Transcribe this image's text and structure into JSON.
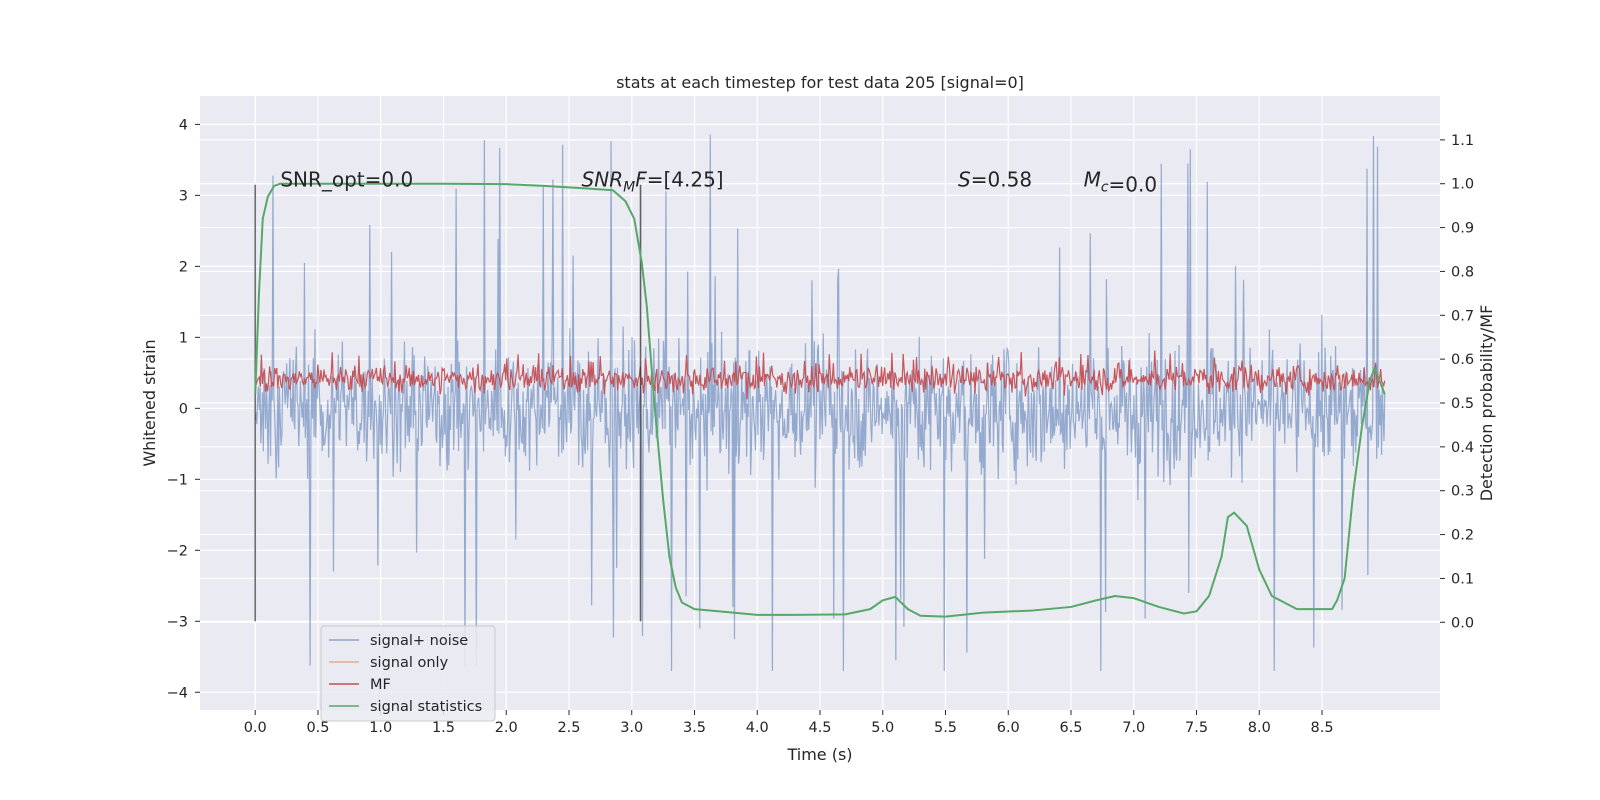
{
  "chart_data": {
    "type": "line",
    "title": "stats at each timestep for test data 205 [signal=0]",
    "xlabel": "Time (s)",
    "ylabel": "Whitened strain",
    "ylabel_right": "Detection probability/MF",
    "xlim": [
      -0.44,
      9.44
    ],
    "ylim": [
      -4.25,
      4.4
    ],
    "ylim_right": [
      -0.2,
      1.2
    ],
    "x_ticks": [
      0.0,
      0.5,
      1.0,
      1.5,
      2.0,
      2.5,
      3.0,
      3.5,
      4.0,
      4.5,
      5.0,
      5.5,
      6.0,
      6.5,
      7.0,
      7.5,
      8.0,
      8.5
    ],
    "x_tick_labels": [
      "0.0",
      "0.5",
      "1.0",
      "1.5",
      "2.0",
      "2.5",
      "3.0",
      "3.5",
      "4.0",
      "4.5",
      "5.0",
      "5.5",
      "6.0",
      "6.5",
      "7.0",
      "7.5",
      "8.0",
      "8.5"
    ],
    "y_ticks": [
      4,
      3,
      2,
      1,
      0,
      -1,
      -2,
      -3,
      -4
    ],
    "y_tick_labels": [
      "4",
      "3",
      "2",
      "1",
      "0",
      "−1",
      "−2",
      "−3",
      "−4"
    ],
    "y2_ticks": [
      1.1,
      1.0,
      0.9,
      0.8,
      0.7,
      0.6,
      0.5,
      0.4,
      0.3,
      0.2,
      0.1,
      0.0
    ],
    "y2_tick_labels": [
      "1.1",
      "1.0",
      "0.9",
      "0.8",
      "0.7",
      "0.6",
      "0.5",
      "0.4",
      "0.3",
      "0.2",
      "0.1",
      "0.0"
    ],
    "grid": true,
    "legend_position": "lower-left",
    "series": [
      {
        "name": "signal+ noise",
        "axis": "left",
        "color": "#4c72b0",
        "description": "whitened strain noise, approx. ±1.3 core band with spikes from about −3.7 to 4.0, over 0.0 to 9.0 s",
        "range": [
          -3.7,
          4.0
        ],
        "core_band": [
          -1.3,
          1.3
        ]
      },
      {
        "name": "signal only",
        "axis": "left",
        "color": "#dd8452",
        "values": []
      },
      {
        "name": "MF",
        "axis": "right",
        "color": "#c44e52",
        "description": "matched filter output fluctuating between about 0.5 and 0.62 on right axis",
        "range": [
          0.49,
          0.62
        ]
      },
      {
        "name": "signal statistics",
        "axis": "right",
        "color": "#55a868",
        "x": [
          0.0,
          0.03,
          0.06,
          0.1,
          0.15,
          0.2,
          0.3,
          0.5,
          1.0,
          1.5,
          2.0,
          2.3,
          2.6,
          2.85,
          2.95,
          3.02,
          3.08,
          3.12,
          3.18,
          3.25,
          3.3,
          3.35,
          3.4,
          3.5,
          3.7,
          4.0,
          4.3,
          4.7,
          4.9,
          5.0,
          5.1,
          5.2,
          5.3,
          5.5,
          5.8,
          6.2,
          6.5,
          6.7,
          6.85,
          7.0,
          7.2,
          7.4,
          7.5,
          7.6,
          7.7,
          7.75,
          7.8,
          7.9,
          8.0,
          8.1,
          8.3,
          8.5,
          8.58,
          8.62,
          8.68,
          8.75,
          8.82,
          8.88,
          8.92,
          8.96,
          9.0
        ],
        "values": [
          0.52,
          0.75,
          0.92,
          0.97,
          0.995,
          1.0,
          1.0,
          1.0,
          1.0,
          1.0,
          0.999,
          0.995,
          0.99,
          0.985,
          0.96,
          0.92,
          0.82,
          0.72,
          0.5,
          0.28,
          0.15,
          0.08,
          0.045,
          0.03,
          0.025,
          0.017,
          0.017,
          0.018,
          0.03,
          0.05,
          0.058,
          0.03,
          0.015,
          0.013,
          0.022,
          0.027,
          0.035,
          0.05,
          0.06,
          0.055,
          0.035,
          0.02,
          0.025,
          0.06,
          0.15,
          0.24,
          0.25,
          0.22,
          0.12,
          0.06,
          0.03,
          0.03,
          0.03,
          0.05,
          0.1,
          0.3,
          0.45,
          0.55,
          0.58,
          0.55,
          0.52
        ]
      }
    ],
    "vertical_markers": [
      {
        "x": 0.0,
        "y_from": -3.0,
        "y_to": 3.15,
        "color": "#404040"
      },
      {
        "x": 3.07,
        "y_from": -3.0,
        "y_to": 3.15,
        "color": "#303030"
      }
    ],
    "annotations": [
      {
        "x": 0.2,
        "y": 3.15,
        "text": "SNR_opt=0.0"
      },
      {
        "x": 2.6,
        "y": 3.15,
        "prefix": "SNR",
        "sub": "M",
        "suffix": "F=[4.25]"
      },
      {
        "x": 5.6,
        "y": 3.15,
        "prefix": "S",
        "sub": "",
        "suffix": "=0.58"
      },
      {
        "x": 6.6,
        "y": 3.15,
        "prefix": "M",
        "sub": "c",
        "suffix": "=0.0"
      }
    ]
  }
}
